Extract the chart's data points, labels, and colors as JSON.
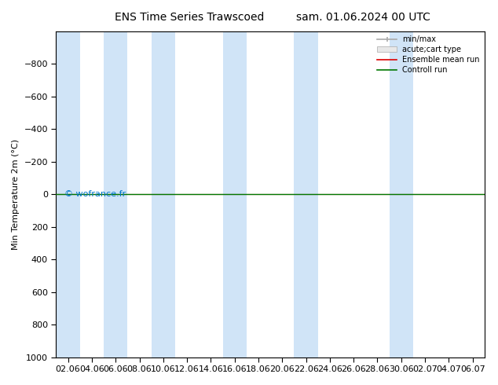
{
  "title_left": "ENS Time Series Trawscoed",
  "title_right": "sam. 01.06.2024 00 UTC",
  "ylabel": "Min Temperature 2m (°C)",
  "ylim": [
    -1000,
    1000
  ],
  "yticks": [
    -800,
    -600,
    -400,
    -200,
    0,
    200,
    400,
    600,
    800,
    1000
  ],
  "xlabels": [
    "02.06",
    "04.06",
    "06.06",
    "08.06",
    "10.06",
    "12.06",
    "14.06",
    "16.06",
    "18.06",
    "20.06",
    "22.06",
    "24.06",
    "26.06",
    "28.06",
    "30.06",
    "02.07",
    "04.07",
    "06.07"
  ],
  "bg_color": "#ffffff",
  "plot_bg_color": "#ffffff",
  "shaded_indices": [
    0,
    2,
    4,
    8,
    12,
    14
  ],
  "shaded_color": "#d0e4f7",
  "green_line_y": 0,
  "red_line_y": 0,
  "watermark": "© wofrance.fr",
  "watermark_color": "#0077cc",
  "legend_labels": [
    "min/max",
    "acute;cart type",
    "Ensemble mean run",
    "Controll run"
  ],
  "legend_line_colors": [
    "#aaaaaa",
    "#cccccc",
    "#dd0000",
    "#007700"
  ],
  "title_fontsize": 10,
  "axis_fontsize": 8,
  "tick_fontsize": 8
}
